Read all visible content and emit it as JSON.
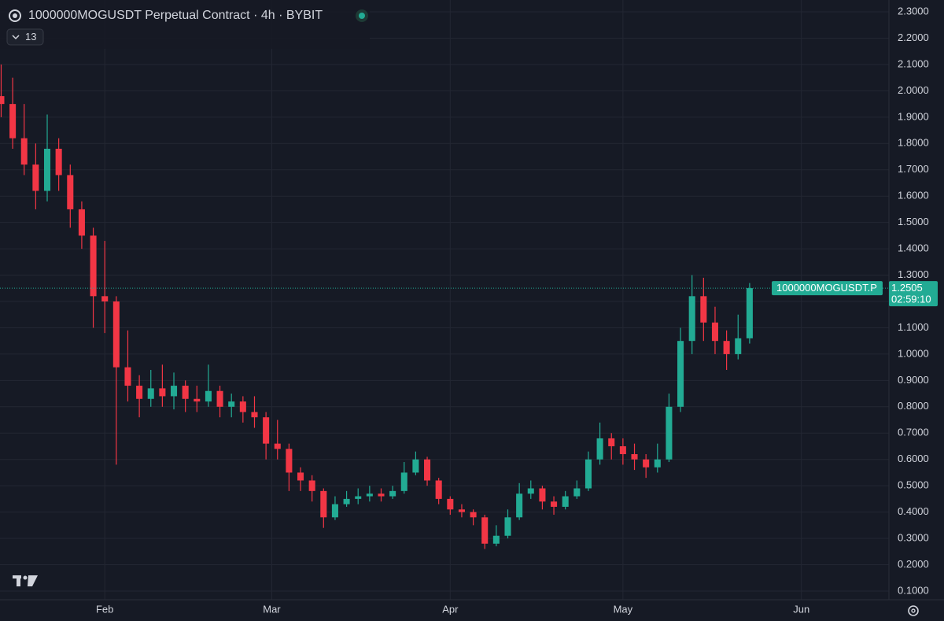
{
  "chart_data": {
    "type": "candlestick",
    "title": "1000000MOGUSDT Perpetual Contract · 4h · BYBIT",
    "indicator_count": "13",
    "up_color": "#22ab94",
    "down_color": "#f23645",
    "grid": true,
    "x": [
      14,
      16,
      18,
      20,
      22,
      24,
      26,
      28,
      30,
      32,
      34,
      36,
      38,
      40,
      42,
      44,
      46,
      48,
      50,
      52,
      54,
      56,
      58,
      60,
      62,
      64,
      66,
      68,
      70,
      72,
      74,
      76,
      78,
      80,
      82,
      84,
      86,
      88,
      90,
      92,
      94,
      96,
      98,
      100,
      102,
      104,
      106,
      108,
      110,
      112,
      114,
      116,
      118,
      120,
      122,
      124,
      126,
      128,
      130,
      132,
      134,
      136,
      138,
      140,
      142,
      144
    ],
    "open": [
      1.98,
      1.95,
      1.82,
      1.72,
      1.62,
      1.78,
      1.68,
      1.55,
      1.45,
      1.22,
      1.2,
      0.95,
      0.88,
      0.83,
      0.87,
      0.84,
      0.88,
      0.83,
      0.82,
      0.86,
      0.8,
      0.82,
      0.78,
      0.76,
      0.66,
      0.64,
      0.55,
      0.52,
      0.48,
      0.38,
      0.43,
      0.45,
      0.46,
      0.47,
      0.46,
      0.48,
      0.55,
      0.6,
      0.52,
      0.45,
      0.41,
      0.4,
      0.38,
      0.28,
      0.31,
      0.38,
      0.47,
      0.49,
      0.44,
      0.42,
      0.46,
      0.49,
      0.6,
      0.68,
      0.65,
      0.62,
      0.6,
      0.57,
      0.6,
      0.8,
      1.05,
      1.22,
      1.12,
      1.05,
      1.0,
      1.06
    ],
    "high": [
      2.1,
      2.05,
      1.95,
      1.8,
      1.91,
      1.82,
      1.72,
      1.58,
      1.48,
      1.43,
      1.22,
      1.09,
      0.92,
      0.94,
      0.96,
      0.93,
      0.9,
      0.88,
      0.96,
      0.88,
      0.85,
      0.84,
      0.84,
      0.78,
      0.75,
      0.66,
      0.57,
      0.54,
      0.49,
      0.46,
      0.48,
      0.49,
      0.5,
      0.49,
      0.5,
      0.59,
      0.63,
      0.61,
      0.53,
      0.46,
      0.43,
      0.41,
      0.39,
      0.35,
      0.41,
      0.51,
      0.52,
      0.5,
      0.46,
      0.48,
      0.52,
      0.63,
      0.74,
      0.7,
      0.68,
      0.66,
      0.62,
      0.66,
      0.85,
      1.1,
      1.3,
      1.29,
      1.18,
      1.09,
      1.15,
      1.27
    ],
    "low": [
      1.9,
      1.78,
      1.68,
      1.55,
      1.58,
      1.62,
      1.48,
      1.4,
      1.1,
      1.08,
      0.58,
      0.82,
      0.76,
      0.8,
      0.8,
      0.79,
      0.78,
      0.78,
      0.8,
      0.76,
      0.76,
      0.74,
      0.72,
      0.6,
      0.6,
      0.48,
      0.48,
      0.44,
      0.34,
      0.37,
      0.42,
      0.43,
      0.44,
      0.44,
      0.45,
      0.47,
      0.54,
      0.5,
      0.43,
      0.39,
      0.38,
      0.35,
      0.26,
      0.27,
      0.3,
      0.37,
      0.45,
      0.41,
      0.39,
      0.41,
      0.45,
      0.48,
      0.58,
      0.6,
      0.58,
      0.56,
      0.53,
      0.55,
      0.59,
      0.78,
      1.0,
      1.05,
      1.0,
      0.94,
      0.98,
      1.04
    ],
    "close": [
      1.95,
      1.82,
      1.72,
      1.62,
      1.78,
      1.68,
      1.55,
      1.45,
      1.22,
      1.2,
      0.95,
      0.88,
      0.83,
      0.87,
      0.84,
      0.88,
      0.83,
      0.82,
      0.86,
      0.8,
      0.82,
      0.78,
      0.76,
      0.66,
      0.64,
      0.55,
      0.52,
      0.48,
      0.38,
      0.43,
      0.45,
      0.46,
      0.47,
      0.46,
      0.48,
      0.55,
      0.6,
      0.52,
      0.45,
      0.41,
      0.4,
      0.38,
      0.28,
      0.31,
      0.38,
      0.47,
      0.49,
      0.44,
      0.42,
      0.46,
      0.49,
      0.6,
      0.68,
      0.65,
      0.62,
      0.6,
      0.57,
      0.6,
      0.8,
      1.05,
      1.22,
      1.12,
      1.05,
      1.0,
      1.06,
      1.2505
    ],
    "xlim": [
      13.8,
      168.2
    ],
    "xticks": [
      {
        "value": 32,
        "label": "Feb"
      },
      {
        "value": 61,
        "label": "Mar"
      },
      {
        "value": 92,
        "label": "Apr"
      },
      {
        "value": 122,
        "label": "May"
      },
      {
        "value": 153,
        "label": "Jun"
      }
    ],
    "ylim": [
      0.067,
      2.345
    ],
    "yticks": [
      {
        "value": 0.1,
        "label": "0.1000"
      },
      {
        "value": 0.2,
        "label": "0.2000"
      },
      {
        "value": 0.3,
        "label": "0.3000"
      },
      {
        "value": 0.4,
        "label": "0.4000"
      },
      {
        "value": 0.5,
        "label": "0.5000"
      },
      {
        "value": 0.6,
        "label": "0.6000"
      },
      {
        "value": 0.7,
        "label": "0.7000"
      },
      {
        "value": 0.8,
        "label": "0.8000"
      },
      {
        "value": 0.9,
        "label": "0.9000"
      },
      {
        "value": 1.0,
        "label": "1.0000"
      },
      {
        "value": 1.1,
        "label": "1.1000"
      },
      {
        "value": 1.2,
        "label": "1.2000"
      },
      {
        "value": 1.3,
        "label": "1.3000"
      },
      {
        "value": 1.4,
        "label": "1.4000"
      },
      {
        "value": 1.5,
        "label": "1.5000"
      },
      {
        "value": 1.6,
        "label": "1.6000"
      },
      {
        "value": 1.7,
        "label": "1.7000"
      },
      {
        "value": 1.8,
        "label": "1.8000"
      },
      {
        "value": 1.9,
        "label": "1.9000"
      },
      {
        "value": 2.0,
        "label": "2.0000"
      },
      {
        "value": 2.1,
        "label": "2.1000"
      },
      {
        "value": 2.2,
        "label": "2.2000"
      },
      {
        "value": 2.3,
        "label": "2.3000"
      }
    ],
    "last_price": 1.2505,
    "last_price_symbol": "1000000MOGUSDT.P",
    "countdown": "02:59:10"
  }
}
